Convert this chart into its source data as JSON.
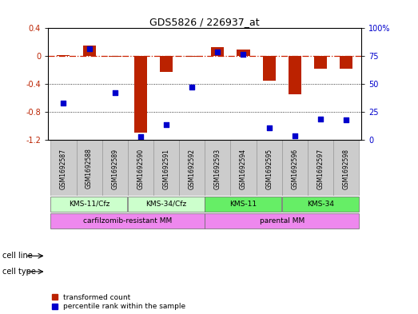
{
  "title": "GDS5826 / 226937_at",
  "samples": [
    "GSM1692587",
    "GSM1692588",
    "GSM1692589",
    "GSM1692590",
    "GSM1692591",
    "GSM1692592",
    "GSM1692593",
    "GSM1692594",
    "GSM1692595",
    "GSM1692596",
    "GSM1692597",
    "GSM1692598"
  ],
  "transformed_count": [
    0.02,
    0.15,
    -0.01,
    -1.1,
    -0.22,
    -0.01,
    0.13,
    0.1,
    -0.35,
    -0.55,
    -0.18,
    -0.18
  ],
  "percentile_rank": [
    33,
    82,
    42,
    3,
    14,
    47,
    79,
    77,
    11,
    4,
    19,
    18
  ],
  "ylim_left": [
    -1.2,
    0.4
  ],
  "ylim_right": [
    0,
    100
  ],
  "yticks_left": [
    -1.2,
    -0.8,
    -0.4,
    0.0,
    0.4
  ],
  "ytick_labels_left": [
    "-1.2",
    "-0.8",
    "-0.4",
    "0",
    "0.4"
  ],
  "yticks_right": [
    0,
    25,
    50,
    75,
    100
  ],
  "ytick_labels_right": [
    "0",
    "25",
    "50",
    "75",
    "100%"
  ],
  "cell_lines": [
    {
      "label": "KMS-11/Cfz",
      "start": 0,
      "end": 3,
      "color": "#ccffcc"
    },
    {
      "label": "KMS-34/Cfz",
      "start": 3,
      "end": 6,
      "color": "#ccffcc"
    },
    {
      "label": "KMS-11",
      "start": 6,
      "end": 9,
      "color": "#66ee66"
    },
    {
      "label": "KMS-34",
      "start": 9,
      "end": 12,
      "color": "#66ee66"
    }
  ],
  "cell_types": [
    {
      "label": "carfilzomib-resistant MM",
      "start": 0,
      "end": 6,
      "color": "#ee88ee"
    },
    {
      "label": "parental MM",
      "start": 6,
      "end": 12,
      "color": "#ee88ee"
    }
  ],
  "bar_color_red": "#bb2200",
  "dot_color_blue": "#0000cc",
  "zero_line_color": "#cc2200",
  "grid_line_color": "#000000",
  "bg_color": "#ffffff",
  "sample_box_color": "#cccccc",
  "label_row1": "cell line",
  "label_row2": "cell type",
  "legend_red": "transformed count",
  "legend_blue": "percentile rank within the sample",
  "bar_width": 0.5,
  "dot_size": 18
}
